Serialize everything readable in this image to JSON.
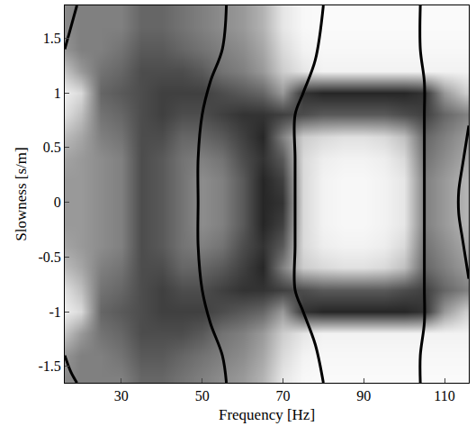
{
  "chart_data": {
    "type": "heatmap",
    "x_label": "Frequency [Hz]",
    "y_label": "Slowness [s/m]",
    "xlim": [
      16,
      116
    ],
    "ylim": [
      -1.65,
      1.8
    ],
    "xticks": [
      30,
      50,
      70,
      90,
      110
    ],
    "yticks": [
      -1.5,
      -1,
      -0.5,
      0,
      0.5,
      1,
      1.5
    ],
    "tick_labels": true,
    "grid": false,
    "color": "gray",
    "zlim": [
      0,
      1
    ],
    "x": [
      15,
      20,
      25,
      30,
      35,
      40,
      45,
      50,
      55,
      60,
      65,
      70,
      75,
      80,
      85,
      90,
      95,
      100,
      105,
      110,
      115
    ],
    "y": [
      -1.6,
      -1.4,
      -1.2,
      -1.0,
      -0.8,
      -0.6,
      -0.4,
      -0.2,
      0,
      0.2,
      0.4,
      0.6,
      0.8,
      1.0,
      1.2,
      1.4,
      1.6,
      1.8
    ],
    "z": [
      [
        0.55,
        0.5,
        0.5,
        0.5,
        0.4,
        0.4,
        0.45,
        0.5,
        0.55,
        0.6,
        0.7,
        0.9,
        0.97,
        0.98,
        0.98,
        0.98,
        0.98,
        0.98,
        0.98,
        0.98,
        0.98
      ],
      [
        0.6,
        0.5,
        0.5,
        0.45,
        0.35,
        0.35,
        0.4,
        0.45,
        0.5,
        0.55,
        0.65,
        0.85,
        0.95,
        0.97,
        0.97,
        0.97,
        0.97,
        0.97,
        0.97,
        0.97,
        0.97
      ],
      [
        0.8,
        0.6,
        0.45,
        0.4,
        0.3,
        0.3,
        0.3,
        0.35,
        0.45,
        0.5,
        0.6,
        0.8,
        0.9,
        0.95,
        0.95,
        0.95,
        0.95,
        0.95,
        0.95,
        0.95,
        0.95
      ],
      [
        0.95,
        0.85,
        0.4,
        0.35,
        0.3,
        0.25,
        0.25,
        0.25,
        0.3,
        0.35,
        0.4,
        0.6,
        0.2,
        0.15,
        0.15,
        0.15,
        0.15,
        0.15,
        0.2,
        0.6,
        0.8
      ],
      [
        0.9,
        0.75,
        0.45,
        0.4,
        0.3,
        0.25,
        0.3,
        0.3,
        0.25,
        0.2,
        0.2,
        0.25,
        0.3,
        0.35,
        0.35,
        0.35,
        0.35,
        0.3,
        0.25,
        0.4,
        0.5
      ],
      [
        0.75,
        0.65,
        0.5,
        0.45,
        0.3,
        0.3,
        0.4,
        0.4,
        0.35,
        0.25,
        0.15,
        0.5,
        0.8,
        0.85,
        0.88,
        0.88,
        0.85,
        0.75,
        0.4,
        0.5,
        0.6
      ],
      [
        0.65,
        0.6,
        0.55,
        0.5,
        0.3,
        0.35,
        0.45,
        0.5,
        0.45,
        0.3,
        0.2,
        0.35,
        0.85,
        0.93,
        0.95,
        0.95,
        0.93,
        0.85,
        0.45,
        0.55,
        0.65
      ],
      [
        0.6,
        0.6,
        0.55,
        0.5,
        0.3,
        0.35,
        0.45,
        0.55,
        0.5,
        0.35,
        0.15,
        0.25,
        0.85,
        0.95,
        0.97,
        0.97,
        0.95,
        0.9,
        0.5,
        0.6,
        0.7
      ],
      [
        0.6,
        0.6,
        0.55,
        0.5,
        0.3,
        0.35,
        0.45,
        0.55,
        0.5,
        0.35,
        0.15,
        0.2,
        0.85,
        0.95,
        0.97,
        0.97,
        0.95,
        0.9,
        0.5,
        0.6,
        0.7
      ],
      [
        0.6,
        0.6,
        0.55,
        0.5,
        0.3,
        0.35,
        0.45,
        0.55,
        0.5,
        0.35,
        0.15,
        0.25,
        0.85,
        0.95,
        0.97,
        0.97,
        0.95,
        0.9,
        0.5,
        0.6,
        0.7
      ],
      [
        0.65,
        0.6,
        0.55,
        0.5,
        0.3,
        0.35,
        0.45,
        0.5,
        0.45,
        0.3,
        0.2,
        0.35,
        0.85,
        0.93,
        0.95,
        0.95,
        0.93,
        0.85,
        0.45,
        0.55,
        0.65
      ],
      [
        0.75,
        0.65,
        0.5,
        0.45,
        0.3,
        0.3,
        0.4,
        0.4,
        0.35,
        0.25,
        0.15,
        0.5,
        0.8,
        0.85,
        0.88,
        0.88,
        0.85,
        0.75,
        0.4,
        0.5,
        0.6
      ],
      [
        0.9,
        0.75,
        0.45,
        0.4,
        0.3,
        0.25,
        0.3,
        0.3,
        0.25,
        0.2,
        0.2,
        0.25,
        0.3,
        0.35,
        0.35,
        0.35,
        0.35,
        0.3,
        0.25,
        0.4,
        0.5
      ],
      [
        0.95,
        0.85,
        0.4,
        0.35,
        0.3,
        0.25,
        0.25,
        0.25,
        0.3,
        0.35,
        0.4,
        0.6,
        0.2,
        0.15,
        0.15,
        0.15,
        0.15,
        0.15,
        0.2,
        0.6,
        0.8
      ],
      [
        0.8,
        0.6,
        0.45,
        0.4,
        0.3,
        0.3,
        0.3,
        0.35,
        0.45,
        0.5,
        0.6,
        0.8,
        0.9,
        0.95,
        0.95,
        0.95,
        0.95,
        0.95,
        0.95,
        0.95,
        0.95
      ],
      [
        0.6,
        0.5,
        0.5,
        0.45,
        0.35,
        0.35,
        0.4,
        0.45,
        0.5,
        0.55,
        0.65,
        0.85,
        0.95,
        0.97,
        0.97,
        0.97,
        0.97,
        0.97,
        0.97,
        0.97,
        0.97
      ],
      [
        0.55,
        0.5,
        0.5,
        0.5,
        0.4,
        0.4,
        0.45,
        0.5,
        0.55,
        0.6,
        0.7,
        0.9,
        0.97,
        0.98,
        0.98,
        0.98,
        0.98,
        0.98,
        0.98,
        0.98,
        0.98
      ],
      [
        0.55,
        0.5,
        0.5,
        0.5,
        0.4,
        0.4,
        0.45,
        0.5,
        0.55,
        0.6,
        0.7,
        0.9,
        0.97,
        0.98,
        0.98,
        0.98,
        0.98,
        0.98,
        0.98,
        0.98,
        0.98
      ]
    ],
    "series": [
      {
        "type": "line",
        "color": "#000000",
        "x": [
          16,
          17.5,
          19
        ],
        "y": [
          1.4,
          1.6,
          1.8
        ]
      },
      {
        "type": "line",
        "color": "#000000",
        "x": [
          16,
          17.5,
          19
        ],
        "y": [
          -1.4,
          -1.55,
          -1.65
        ]
      },
      {
        "type": "line",
        "color": "#000000",
        "x": [
          56,
          55,
          52,
          50,
          49,
          49,
          49,
          50,
          52,
          55,
          56
        ],
        "y": [
          1.8,
          1.4,
          1.1,
          0.8,
          0.4,
          0,
          -0.4,
          -0.8,
          -1.1,
          -1.4,
          -1.65
        ]
      },
      {
        "type": "line",
        "color": "#000000",
        "x": [
          80,
          78,
          75,
          73,
          73,
          73,
          73,
          73,
          75,
          78,
          80
        ],
        "y": [
          1.8,
          1.3,
          1.0,
          0.8,
          0.4,
          0,
          -0.4,
          -0.8,
          -1.0,
          -1.3,
          -1.65
        ]
      },
      {
        "type": "line",
        "color": "#000000",
        "x": [
          104,
          104,
          105,
          105,
          105,
          105,
          105,
          105,
          105,
          104,
          104
        ],
        "y": [
          1.8,
          1.4,
          1.1,
          0.8,
          0.4,
          0,
          -0.4,
          -0.8,
          -1.1,
          -1.4,
          -1.65
        ]
      },
      {
        "type": "line",
        "color": "#000000",
        "x": [
          116,
          114.5,
          113.5,
          113.5,
          114.5,
          116
        ],
        "y": [
          0.7,
          0.35,
          0.1,
          -0.1,
          -0.35,
          -0.7
        ]
      }
    ]
  }
}
